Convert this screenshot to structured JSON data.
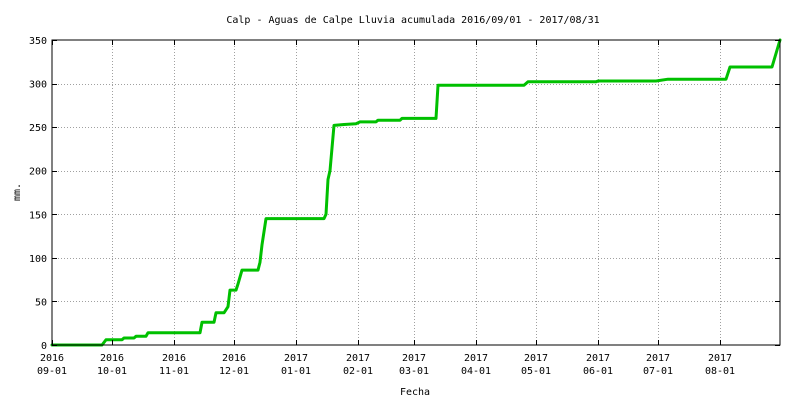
{
  "chart_data": {
    "type": "line",
    "title": "Calp - Aguas de Calpe Lluvia acumulada 2016/09/01 - 2017/08/31",
    "xlabel": "Fecha",
    "ylabel": "mm.",
    "xlim": [
      "2016-09-01",
      "2017-08-31"
    ],
    "ylim": [
      0,
      350
    ],
    "grid": true,
    "legend": "none",
    "x_ticks": [
      {
        "date": "2016-09-01",
        "year": "2016",
        "month": "09-01"
      },
      {
        "date": "2016-10-01",
        "year": "2016",
        "month": "10-01"
      },
      {
        "date": "2016-11-01",
        "year": "2016",
        "month": "11-01"
      },
      {
        "date": "2016-12-01",
        "year": "2016",
        "month": "12-01"
      },
      {
        "date": "2017-01-01",
        "year": "2017",
        "month": "01-01"
      },
      {
        "date": "2017-02-01",
        "year": "2017",
        "month": "02-01"
      },
      {
        "date": "2017-03-01",
        "year": "2017",
        "month": "03-01"
      },
      {
        "date": "2017-04-01",
        "year": "2017",
        "month": "04-01"
      },
      {
        "date": "2017-05-01",
        "year": "2017",
        "month": "05-01"
      },
      {
        "date": "2017-06-01",
        "year": "2017",
        "month": "06-01"
      },
      {
        "date": "2017-07-01",
        "year": "2017",
        "month": "07-01"
      },
      {
        "date": "2017-08-01",
        "year": "2017",
        "month": "08-01"
      }
    ],
    "y_ticks": [
      0,
      50,
      100,
      150,
      200,
      250,
      300,
      350
    ],
    "series": [
      {
        "color": "#00c000",
        "points": [
          [
            "2016-09-01",
            0
          ],
          [
            "2016-09-26",
            0
          ],
          [
            "2016-09-28",
            6
          ],
          [
            "2016-10-06",
            6
          ],
          [
            "2016-10-07",
            8
          ],
          [
            "2016-10-12",
            8
          ],
          [
            "2016-10-13",
            10
          ],
          [
            "2016-10-18",
            10
          ],
          [
            "2016-10-19",
            14
          ],
          [
            "2016-11-14",
            14
          ],
          [
            "2016-11-15",
            26
          ],
          [
            "2016-11-21",
            26
          ],
          [
            "2016-11-22",
            37
          ],
          [
            "2016-11-26",
            37
          ],
          [
            "2016-11-28",
            44
          ],
          [
            "2016-11-29",
            63
          ],
          [
            "2016-12-02",
            63
          ],
          [
            "2016-12-03",
            70
          ],
          [
            "2016-12-05",
            86
          ],
          [
            "2016-12-13",
            86
          ],
          [
            "2016-12-14",
            95
          ],
          [
            "2016-12-15",
            115
          ],
          [
            "2016-12-17",
            145
          ],
          [
            "2017-01-15",
            145
          ],
          [
            "2017-01-16",
            150
          ],
          [
            "2017-01-17",
            190
          ],
          [
            "2017-01-18",
            200
          ],
          [
            "2017-01-20",
            252
          ],
          [
            "2017-01-25",
            253
          ],
          [
            "2017-01-31",
            254
          ],
          [
            "2017-02-02",
            256
          ],
          [
            "2017-02-10",
            256
          ],
          [
            "2017-02-11",
            258
          ],
          [
            "2017-02-22",
            258
          ],
          [
            "2017-02-23",
            260
          ],
          [
            "2017-03-12",
            260
          ],
          [
            "2017-03-13",
            298
          ],
          [
            "2017-04-25",
            298
          ],
          [
            "2017-04-27",
            302
          ],
          [
            "2017-05-31",
            302
          ],
          [
            "2017-06-01",
            303
          ],
          [
            "2017-06-30",
            303
          ],
          [
            "2017-07-06",
            305
          ],
          [
            "2017-08-04",
            305
          ],
          [
            "2017-08-06",
            319
          ],
          [
            "2017-08-27",
            319
          ],
          [
            "2017-08-31",
            350
          ]
        ]
      }
    ]
  }
}
